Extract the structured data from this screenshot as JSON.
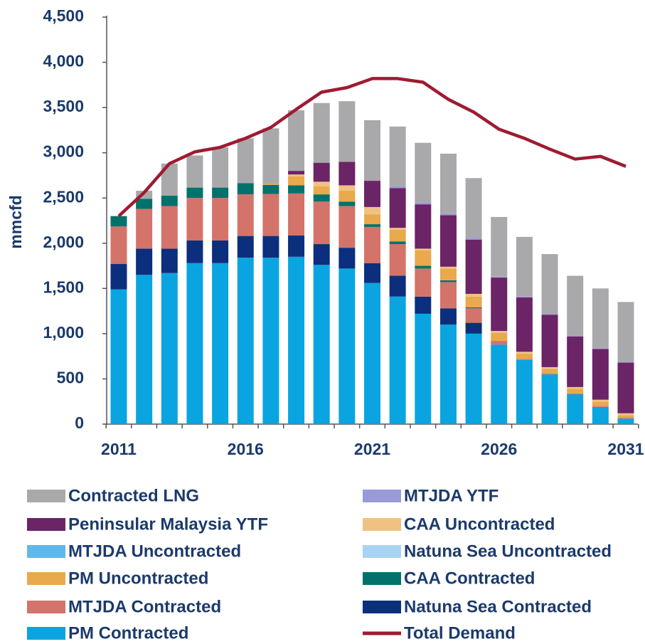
{
  "chart_data": {
    "type": "stacked_bar_line",
    "y_label": "mmcfd",
    "categories": [
      "2011",
      null,
      null,
      null,
      null,
      "2016",
      null,
      null,
      null,
      null,
      "2021",
      null,
      null,
      null,
      null,
      "2026",
      null,
      null,
      null,
      null,
      "2031"
    ],
    "ylim": [
      0,
      4500
    ],
    "yticks": [
      0,
      500,
      {
        "value": 1000,
        "label": "1,000"
      },
      {
        "value": 1500,
        "label": "1,500"
      },
      {
        "value": 2000,
        "label": "2,000"
      },
      {
        "value": 2500,
        "label": "2,500"
      },
      {
        "value": 3000,
        "label": "3,000"
      },
      {
        "value": 3500,
        "label": "3,500"
      },
      {
        "value": 4000,
        "label": "4,000"
      },
      {
        "value": 4500,
        "label": "4,500"
      }
    ],
    "series": [
      {
        "name": "Contracted LNG",
        "color": "#a9a9ab",
        "values": [
          0,
          90,
          355,
          355,
          445,
          495,
          615,
          670,
          660,
          670,
          670,
          660,
          660,
          660,
          660,
          660,
          660,
          660,
          660,
          660,
          660
        ]
      },
      {
        "name": "MTJDA YTF",
        "color": "#9a9ad8",
        "values": [
          0,
          0,
          0,
          0,
          0,
          0,
          0,
          0,
          0,
          0,
          0,
          20,
          20,
          20,
          20,
          10,
          10,
          10,
          10,
          10,
          10
        ]
      },
      {
        "name": "Peninsular Malaysia YTF",
        "color": "#6b2466",
        "values": [
          0,
          0,
          0,
          0,
          0,
          0,
          0,
          40,
          210,
          260,
          290,
          440,
          490,
          570,
          600,
          590,
          600,
          580,
          560,
          560,
          560
        ]
      },
      {
        "name": "CAA Uncontracted",
        "color": "#efc283",
        "values": [
          0,
          0,
          0,
          0,
          0,
          0,
          0,
          20,
          50,
          60,
          80,
          20,
          20,
          20,
          30,
          20,
          20,
          20,
          20,
          20,
          20
        ]
      },
      {
        "name": "MTJDA Uncontracted",
        "color": "#5fb8ea",
        "values": [
          0,
          0,
          0,
          0,
          0,
          0,
          0,
          0,
          0,
          0,
          0,
          0,
          0,
          0,
          0,
          0,
          0,
          0,
          0,
          0,
          0
        ]
      },
      {
        "name": "Natuna Sea Uncontracted",
        "color": "#a9d3f2",
        "values": [
          0,
          0,
          0,
          0,
          0,
          0,
          0,
          0,
          0,
          0,
          0,
          0,
          0,
          0,
          0,
          0,
          0,
          0,
          0,
          0,
          0
        ]
      },
      {
        "name": "PM Uncontracted",
        "color": "#e9a94c",
        "values": [
          0,
          0,
          0,
          0,
          0,
          0,
          10,
          100,
          90,
          120,
          110,
          130,
          170,
          130,
          120,
          90,
          60,
          50,
          50,
          50,
          30
        ]
      },
      {
        "name": "CAA Contracted",
        "color": "#00726b",
        "values": [
          115,
          110,
          115,
          115,
          115,
          125,
          100,
          90,
          80,
          50,
          30,
          30,
          30,
          20,
          10,
          0,
          0,
          0,
          0,
          0,
          0
        ]
      },
      {
        "name": "MTJDA Contracted",
        "color": "#d4736a",
        "values": [
          415,
          440,
          470,
          470,
          470,
          460,
          465,
          465,
          470,
          460,
          400,
          350,
          310,
          290,
          160,
          40,
          10,
          10,
          10,
          10,
          10
        ]
      },
      {
        "name": "Natuna Sea Contracted",
        "color": "#0b2f7c",
        "values": [
          280,
          290,
          270,
          250,
          250,
          240,
          240,
          235,
          230,
          230,
          220,
          230,
          190,
          180,
          120,
          0,
          0,
          0,
          0,
          0,
          0
        ]
      },
      {
        "name": "PM Contracted",
        "color": "#0aa5e0",
        "values": [
          1490,
          1650,
          1670,
          1780,
          1780,
          1840,
          1840,
          1850,
          1760,
          1720,
          1560,
          1410,
          1220,
          1100,
          1000,
          880,
          710,
          550,
          330,
          190,
          60
        ]
      },
      {
        "name": "Total Demand",
        "color": "#9e1b32",
        "type": "line",
        "values": [
          2300,
          2560,
          2880,
          3010,
          3060,
          3160,
          3280,
          3480,
          3670,
          3720,
          3820,
          3820,
          3780,
          3590,
          3450,
          3260,
          3160,
          3040,
          2930,
          2960,
          2850
        ]
      }
    ]
  }
}
